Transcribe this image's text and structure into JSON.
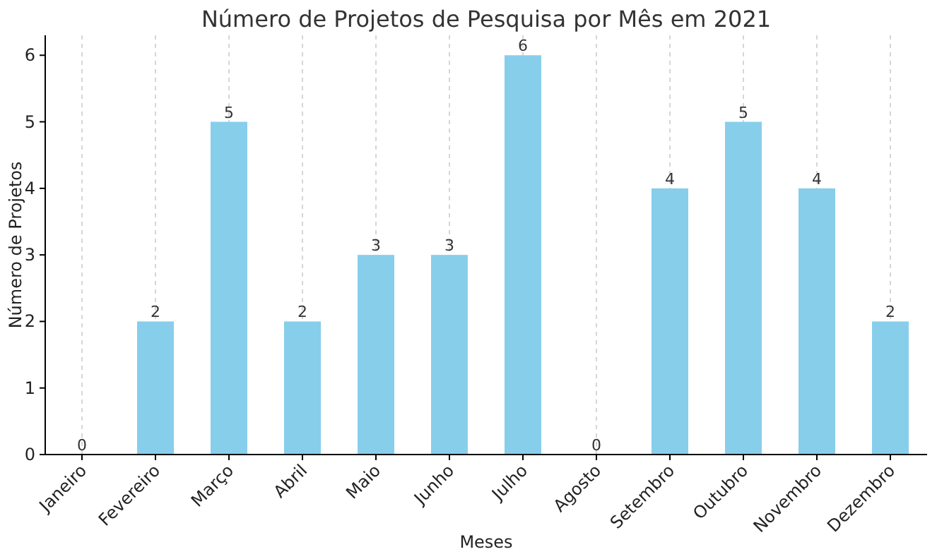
{
  "chart_data": {
    "type": "bar",
    "title": "Número de Projetos de Pesquisa por Mês em 2021",
    "xlabel": "Meses",
    "ylabel": "Número de Projetos",
    "categories": [
      "Janeiro",
      "Fevereiro",
      "Março",
      "Abril",
      "Maio",
      "Junho",
      "Julho",
      "Agosto",
      "Setembro",
      "Outubro",
      "Novembro",
      "Dezembro"
    ],
    "values": [
      0,
      2,
      5,
      2,
      3,
      3,
      6,
      0,
      4,
      5,
      4,
      2
    ],
    "color": "#87ceeb",
    "ylim": [
      0,
      6.3
    ],
    "yticks": [
      0,
      1,
      2,
      3,
      4,
      5,
      6
    ],
    "grid": "x",
    "data_labels": true
  }
}
